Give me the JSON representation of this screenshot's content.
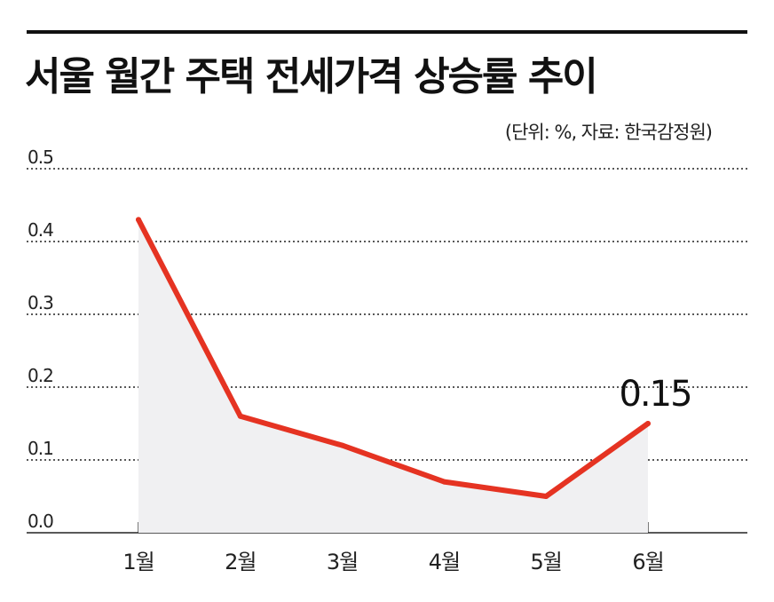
{
  "header": {
    "title": "서울 월간 주택 전세가격 상승률 추이",
    "unit_note": "(단위: %, 자료: 한국감정원)"
  },
  "colors": {
    "line": "#e53322",
    "area": "#f0f0f2",
    "grid": "#222222",
    "text": "#111111"
  },
  "chart_data": {
    "type": "line",
    "title": "서울 월간 주택 전세가격 상승률 추이",
    "categories": [
      "1월",
      "2월",
      "3월",
      "4월",
      "5월",
      "6월"
    ],
    "values": [
      0.43,
      0.16,
      0.12,
      0.07,
      0.05,
      0.15
    ],
    "y_ticks": [
      "0.0",
      "0.1",
      "0.2",
      "0.3",
      "0.4",
      "0.5"
    ],
    "ylim": [
      0,
      0.5
    ],
    "grid": true,
    "grid_style": "dotted",
    "area_fill": true,
    "end_label": "0.15",
    "xlabel": "",
    "ylabel": ""
  }
}
